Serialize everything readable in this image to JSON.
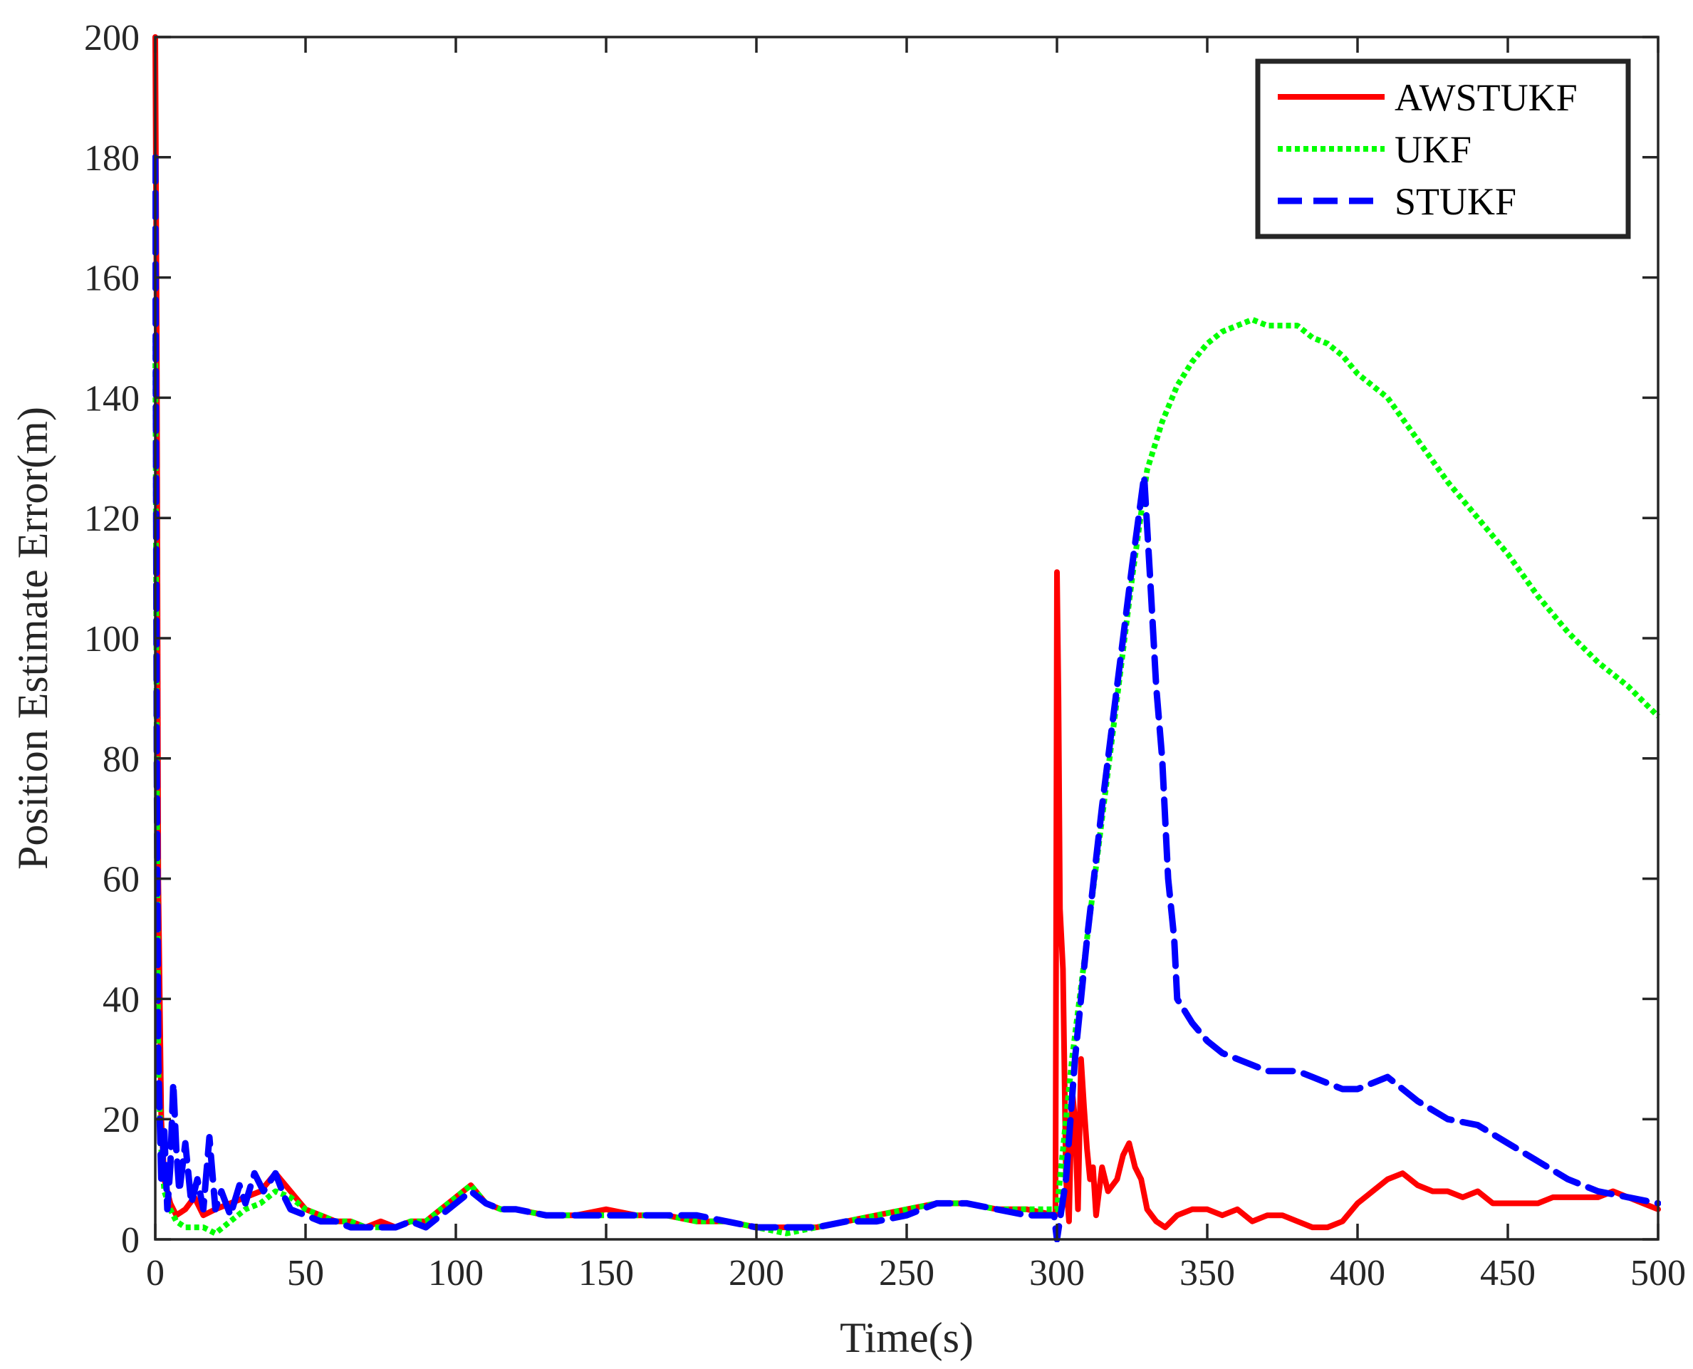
{
  "chart_data": {
    "type": "line",
    "title": "",
    "xlabel": "Time(s)",
    "ylabel": "Position Estimate Error(m)",
    "xlim": [
      0,
      500
    ],
    "ylim": [
      0,
      200
    ],
    "xticks": [
      0,
      50,
      100,
      150,
      200,
      250,
      300,
      350,
      400,
      450,
      500
    ],
    "yticks": [
      0,
      20,
      40,
      60,
      80,
      100,
      120,
      140,
      160,
      180,
      200
    ],
    "grid": false,
    "legend_position": "top-right",
    "series": [
      {
        "name": "AWSTUKF",
        "color": "#ff0000",
        "style": "solid",
        "x": [
          0,
          0.5,
          1,
          2,
          3,
          5,
          7,
          10,
          13,
          16,
          20,
          25,
          30,
          35,
          40,
          45,
          50,
          55,
          60,
          65,
          70,
          75,
          80,
          85,
          90,
          95,
          100,
          105,
          110,
          115,
          120,
          130,
          140,
          150,
          160,
          170,
          180,
          190,
          200,
          210,
          220,
          230,
          240,
          250,
          260,
          270,
          280,
          290,
          299.5,
          300,
          300.5,
          301,
          302,
          303,
          304,
          305,
          306,
          307,
          308,
          309,
          310,
          311,
          312,
          313,
          315,
          317,
          320,
          322,
          324,
          326,
          328,
          330,
          333,
          336,
          340,
          345,
          350,
          355,
          360,
          365,
          370,
          375,
          380,
          385,
          390,
          395,
          400,
          405,
          410,
          415,
          420,
          425,
          430,
          435,
          440,
          445,
          450,
          455,
          460,
          465,
          470,
          475,
          480,
          485,
          490,
          495,
          500
        ],
        "values": [
          200,
          150,
          60,
          20,
          10,
          6,
          4,
          5,
          7,
          4,
          5,
          6,
          7,
          8,
          11,
          8,
          5,
          4,
          3,
          3,
          2,
          3,
          2,
          3,
          3,
          5,
          7,
          9,
          6,
          5,
          5,
          4,
          4,
          5,
          4,
          4,
          3,
          3,
          2,
          2,
          2,
          3,
          4,
          5,
          6,
          6,
          5,
          5,
          4,
          111,
          90,
          55,
          45,
          10,
          3,
          25,
          20,
          5,
          30,
          22,
          15,
          10,
          12,
          4,
          12,
          8,
          10,
          14,
          16,
          12,
          10,
          5,
          3,
          2,
          4,
          5,
          5,
          4,
          5,
          3,
          4,
          4,
          3,
          2,
          2,
          3,
          6,
          8,
          10,
          11,
          9,
          8,
          8,
          7,
          8,
          6,
          6,
          6,
          6,
          7,
          7,
          7,
          7,
          8,
          7,
          6,
          5
        ]
      },
      {
        "name": "UKF",
        "color": "#00ff00",
        "style": "dotted",
        "x": [
          0,
          0.5,
          1,
          2,
          3,
          5,
          7,
          10,
          13,
          16,
          20,
          25,
          30,
          35,
          40,
          45,
          50,
          55,
          60,
          65,
          70,
          75,
          80,
          85,
          90,
          95,
          100,
          105,
          110,
          115,
          120,
          130,
          140,
          150,
          160,
          170,
          180,
          190,
          200,
          210,
          220,
          230,
          240,
          250,
          260,
          270,
          280,
          290,
          300,
          305,
          310,
          315,
          320,
          325,
          330,
          335,
          340,
          345,
          350,
          355,
          360,
          365,
          370,
          375,
          380,
          385,
          390,
          395,
          400,
          410,
          420,
          430,
          440,
          450,
          460,
          470,
          480,
          490,
          500
        ],
        "values": [
          150,
          80,
          28,
          15,
          8,
          5,
          3,
          2,
          2,
          2,
          1,
          3,
          5,
          6,
          8,
          7,
          5,
          4,
          3,
          3,
          2,
          2,
          2,
          3,
          3,
          5,
          7,
          9,
          6,
          5,
          5,
          4,
          4,
          4,
          4,
          4,
          3,
          3,
          2,
          1,
          2,
          3,
          4,
          5,
          6,
          6,
          5,
          5,
          5,
          30,
          50,
          70,
          90,
          110,
          128,
          136,
          142,
          146,
          149,
          151,
          152,
          153,
          152,
          152,
          152,
          150,
          149,
          147,
          144,
          140,
          133,
          126,
          120,
          114,
          107,
          101,
          96,
          92,
          87
        ]
      },
      {
        "name": "STUKF",
        "color": "#0000ff",
        "style": "dashed",
        "x": [
          0,
          0.5,
          1,
          2,
          3,
          4,
          5,
          6,
          7,
          8,
          10,
          12,
          14,
          16,
          18,
          20,
          22,
          25,
          28,
          30,
          33,
          36,
          40,
          43,
          45,
          50,
          55,
          60,
          65,
          70,
          75,
          80,
          85,
          90,
          95,
          100,
          105,
          110,
          115,
          120,
          130,
          140,
          150,
          160,
          170,
          180,
          190,
          200,
          210,
          220,
          230,
          240,
          250,
          260,
          270,
          280,
          290,
          299,
          300,
          303,
          306,
          310,
          315,
          320,
          325,
          329,
          331,
          333,
          335,
          337,
          339,
          340,
          345,
          350,
          355,
          360,
          365,
          370,
          375,
          380,
          385,
          390,
          395,
          400,
          410,
          420,
          430,
          440,
          450,
          460,
          470,
          480,
          490,
          500
        ],
        "values": [
          180,
          80,
          30,
          10,
          18,
          5,
          12,
          26,
          15,
          8,
          16,
          6,
          10,
          5,
          17,
          5,
          8,
          4,
          9,
          6,
          11,
          8,
          11,
          7,
          5,
          4,
          3,
          3,
          2,
          2,
          2,
          2,
          3,
          2,
          4,
          6,
          8,
          6,
          5,
          5,
          4,
          4,
          4,
          4,
          4,
          4,
          3,
          2,
          2,
          2,
          3,
          3,
          4,
          6,
          6,
          5,
          4,
          4,
          0,
          10,
          30,
          50,
          72,
          92,
          112,
          127,
          110,
          92,
          80,
          60,
          50,
          40,
          36,
          33,
          31,
          30,
          29,
          28,
          28,
          28,
          27,
          26,
          25,
          25,
          27,
          23,
          20,
          19,
          16,
          13,
          10,
          8,
          7,
          6
        ]
      }
    ]
  }
}
